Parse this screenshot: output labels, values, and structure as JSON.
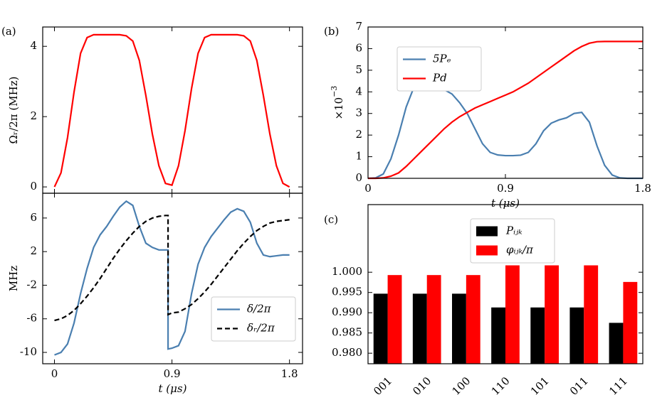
{
  "chart_data": [
    {
      "type": "line",
      "panel_label": "(a)",
      "ylabel": "Ωᵣ/2π (MHz)",
      "x": [
        0,
        0.05,
        0.1,
        0.15,
        0.2,
        0.25,
        0.3,
        0.35,
        0.4,
        0.45,
        0.5,
        0.55,
        0.6,
        0.65,
        0.7,
        0.75,
        0.8,
        0.85,
        0.9,
        0.95,
        1.0,
        1.05,
        1.1,
        1.15,
        1.2,
        1.25,
        1.3,
        1.35,
        1.4,
        1.45,
        1.5,
        1.55,
        1.6,
        1.65,
        1.7,
        1.75,
        1.8
      ],
      "series": [
        {
          "color": "#ff0000",
          "values": [
            0,
            0.4,
            1.4,
            2.7,
            3.8,
            4.25,
            4.33,
            4.33,
            4.33,
            4.33,
            4.33,
            4.3,
            4.15,
            3.6,
            2.6,
            1.5,
            0.6,
            0.1,
            0.05,
            0.6,
            1.6,
            2.8,
            3.8,
            4.25,
            4.33,
            4.33,
            4.33,
            4.33,
            4.33,
            4.3,
            4.15,
            3.6,
            2.6,
            1.5,
            0.6,
            0.1,
            0
          ]
        }
      ],
      "xlim": [
        -0.09,
        1.9
      ],
      "ylim": [
        -0.18,
        4.55
      ],
      "xticks": [
        0,
        0.9,
        1.8
      ],
      "yticks": [
        0,
        2,
        4
      ]
    },
    {
      "type": "line",
      "ylabel": "MHz",
      "xlabel": "t (μs)",
      "legend": "lower right",
      "x": [
        0,
        0.05,
        0.1,
        0.15,
        0.2,
        0.25,
        0.3,
        0.35,
        0.4,
        0.45,
        0.5,
        0.55,
        0.6,
        0.65,
        0.7,
        0.75,
        0.8,
        0.85,
        0.87,
        0.87,
        0.9,
        0.95,
        1.0,
        1.05,
        1.1,
        1.15,
        1.2,
        1.25,
        1.3,
        1.35,
        1.4,
        1.45,
        1.5,
        1.55,
        1.6,
        1.65,
        1.7,
        1.75,
        1.8
      ],
      "series": [
        {
          "name": "δ/2π",
          "color": "#4a7fb0",
          "linestyle": "solid",
          "values": [
            -10.3,
            -10,
            -9,
            -6.5,
            -3,
            0,
            2.5,
            4,
            5,
            6.2,
            7.3,
            8,
            7.5,
            5,
            3,
            2.5,
            2.2,
            2.2,
            2.2,
            -9.6,
            -9.5,
            -9.2,
            -7.5,
            -3,
            0.5,
            2.5,
            3.8,
            4.8,
            5.8,
            6.7,
            7.1,
            6.8,
            5.5,
            3,
            1.6,
            1.4,
            1.5,
            1.6,
            1.6
          ]
        },
        {
          "name": "δᵣ/2π",
          "color": "#000000",
          "linestyle": "dashed",
          "values": [
            -6.2,
            -6,
            -5.6,
            -5,
            -4.2,
            -3.3,
            -2.3,
            -1.2,
            0,
            1.2,
            2.3,
            3.3,
            4.2,
            5,
            5.6,
            6,
            6.2,
            6.3,
            6.3,
            -5.5,
            -5.3,
            -5.2,
            -4.8,
            -4.3,
            -3.6,
            -2.8,
            -1.9,
            -0.9,
            0.1,
            1.1,
            2.1,
            3,
            3.8,
            4.5,
            5,
            5.4,
            5.6,
            5.7,
            5.8
          ]
        }
      ],
      "xlim": [
        -0.09,
        1.9
      ],
      "ylim": [
        -11.35,
        8.95
      ],
      "xticks": [
        0,
        0.9,
        1.8
      ],
      "yticks": [
        -10,
        -6,
        -2,
        2,
        6
      ]
    },
    {
      "type": "line",
      "panel_label": "(b)",
      "ylabel": "×10",
      "ylabel_exponent": "−3",
      "xlabel": "t (μs)",
      "legend": "upper left",
      "x": [
        0,
        0.05,
        0.1,
        0.15,
        0.2,
        0.25,
        0.3,
        0.35,
        0.4,
        0.45,
        0.5,
        0.55,
        0.6,
        0.65,
        0.7,
        0.75,
        0.8,
        0.85,
        0.9,
        0.95,
        1.0,
        1.05,
        1.1,
        1.15,
        1.2,
        1.25,
        1.3,
        1.35,
        1.4,
        1.45,
        1.5,
        1.55,
        1.6,
        1.65,
        1.7,
        1.75,
        1.8
      ],
      "series": [
        {
          "name": "5Pₑ",
          "color": "#4a7fb0",
          "linestyle": "solid",
          "values": [
            0,
            0.02,
            0.2,
            0.9,
            2.0,
            3.3,
            4.2,
            4.5,
            4.45,
            4.3,
            4.1,
            3.9,
            3.5,
            3.0,
            2.3,
            1.6,
            1.2,
            1.08,
            1.05,
            1.05,
            1.07,
            1.2,
            1.6,
            2.2,
            2.55,
            2.7,
            2.8,
            3.0,
            3.05,
            2.6,
            1.5,
            0.6,
            0.15,
            0.02,
            0,
            0,
            0
          ]
        },
        {
          "name": "Pd",
          "color": "#ff0000",
          "linestyle": "solid",
          "values": [
            0,
            0,
            0.02,
            0.1,
            0.25,
            0.55,
            0.9,
            1.25,
            1.6,
            1.95,
            2.3,
            2.6,
            2.85,
            3.05,
            3.25,
            3.4,
            3.55,
            3.7,
            3.85,
            4.0,
            4.2,
            4.4,
            4.65,
            4.9,
            5.15,
            5.4,
            5.65,
            5.9,
            6.1,
            6.25,
            6.32,
            6.33,
            6.33,
            6.33,
            6.33,
            6.33,
            6.33
          ]
        }
      ],
      "xlim": [
        0,
        1.8
      ],
      "ylim": [
        0,
        7
      ],
      "xticks": [
        0,
        0.9,
        1.8
      ],
      "yticks": [
        0,
        1,
        2,
        3,
        4,
        5,
        6,
        7
      ]
    },
    {
      "type": "bar",
      "panel_label": "(c)",
      "legend": "upper center",
      "categories": [
        "001",
        "010",
        "100",
        "110",
        "101",
        "011",
        "111"
      ],
      "series": [
        {
          "name": "Pᵢⱼₖ",
          "color": "#000000",
          "values": [
            0.9947,
            0.9947,
            0.9947,
            0.9913,
            0.9913,
            0.9913,
            0.9875
          ]
        },
        {
          "name": "φᵢⱼₖ/π",
          "color": "#ff0000",
          "values": [
            0.9993,
            0.9993,
            0.9993,
            1.0017,
            1.0017,
            1.0017,
            0.9976
          ]
        }
      ],
      "ylim": [
        0.9774,
        1.0167
      ],
      "yticks": [
        {
          "value": 0.98,
          "label": "0.980"
        },
        {
          "value": 0.985,
          "label": "0.985"
        },
        {
          "value": 0.99,
          "label": "0.990"
        },
        {
          "value": 0.995,
          "label": "0.995"
        },
        {
          "value": 1.0,
          "label": "1.000"
        }
      ]
    }
  ]
}
